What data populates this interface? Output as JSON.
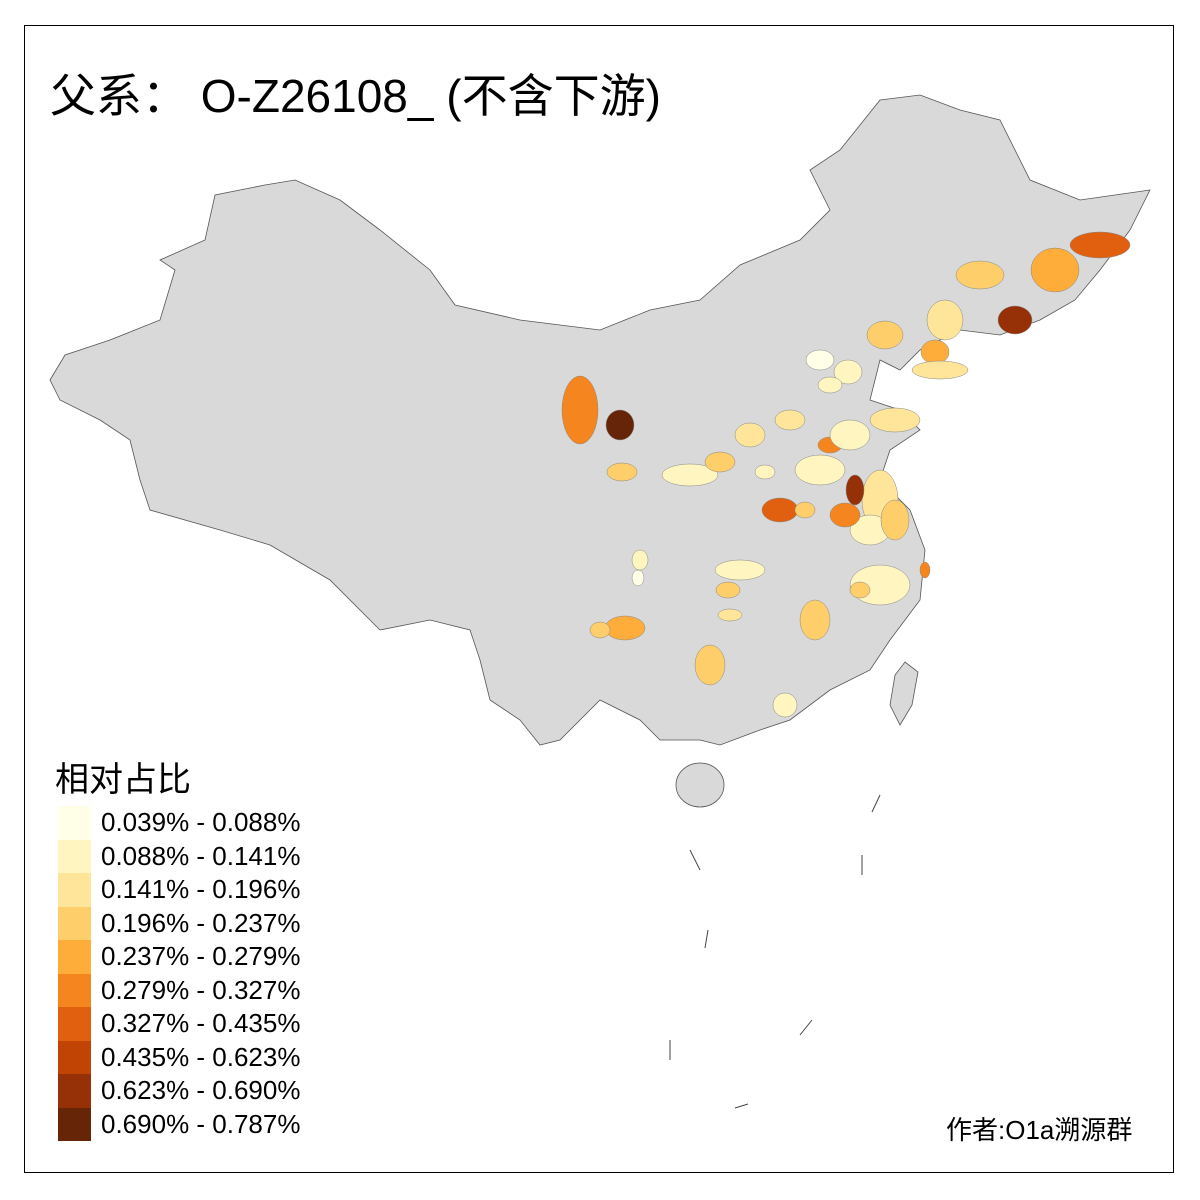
{
  "title": "父系： O-Z26108_ (不含下游)",
  "legend": {
    "title": "相对占比",
    "classes": [
      {
        "label": "0.039% - 0.088%",
        "color": "#fffee6"
      },
      {
        "label": "0.088% - 0.141%",
        "color": "#fff5c0"
      },
      {
        "label": "0.141% - 0.196%",
        "color": "#fee59a"
      },
      {
        "label": "0.196% - 0.237%",
        "color": "#fece6a"
      },
      {
        "label": "0.237% - 0.279%",
        "color": "#feac3a"
      },
      {
        "label": "0.279% - 0.327%",
        "color": "#f5861f"
      },
      {
        "label": "0.327% - 0.435%",
        "color": "#e06010"
      },
      {
        "label": "0.435% - 0.623%",
        "color": "#c24405"
      },
      {
        "label": "0.623% - 0.690%",
        "color": "#953007"
      },
      {
        "label": "0.690% - 0.787%",
        "color": "#662506"
      }
    ]
  },
  "base_color": "#d9d9d9",
  "author": "作者:O1a溯源群"
}
